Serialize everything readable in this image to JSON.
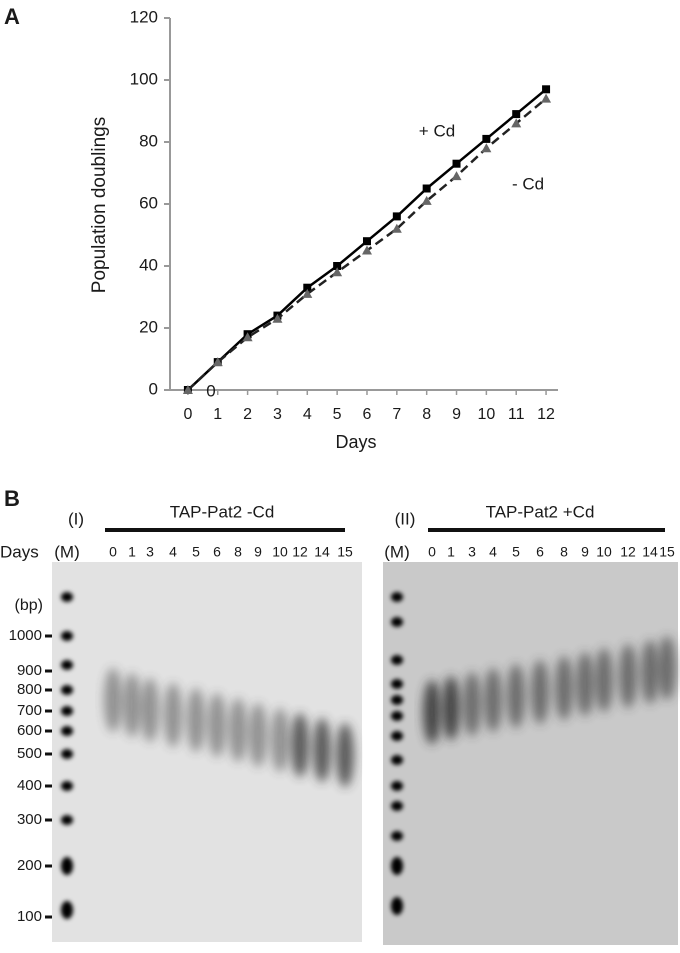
{
  "chart_data": {
    "type": "line",
    "panel_label": "A",
    "xlabel": "Days",
    "ylabel": "Population doublings",
    "x": [
      0,
      1,
      2,
      3,
      4,
      5,
      6,
      7,
      8,
      9,
      10,
      11,
      12
    ],
    "xlim": [
      -0.6,
      12.4
    ],
    "xticks": [
      0,
      1,
      2,
      3,
      4,
      5,
      6,
      7,
      8,
      9,
      10,
      11,
      12
    ],
    "ylim": [
      0,
      120
    ],
    "yticks": [
      0,
      20,
      40,
      60,
      80,
      100,
      120
    ],
    "annotations": [
      "0"
    ],
    "series": [
      {
        "name": "+ Cd",
        "color": "#000000",
        "dashed": false,
        "values": [
          0,
          9,
          18,
          24,
          33,
          40,
          48,
          56,
          65,
          73,
          81,
          89,
          97
        ]
      },
      {
        "name": "- Cd",
        "color": "#222222",
        "dashed": true,
        "values": [
          0,
          9,
          17,
          23,
          31,
          38,
          45,
          52,
          61,
          69,
          78,
          86,
          94
        ]
      }
    ]
  },
  "gel": {
    "label": "B",
    "days_label": "Days",
    "size_unit": "(bp)",
    "size_labels": [
      "1000",
      "900",
      "800",
      "700",
      "600",
      "500",
      "400",
      "300",
      "200",
      "100"
    ],
    "panels": [
      {
        "numeral": "(I)",
        "title": "TAP-Pat2 -Cd",
        "marker": "(M)",
        "lanes": [
          "0",
          "1",
          "3",
          "4",
          "5",
          "6",
          "8",
          "9",
          "10",
          "12",
          "14",
          "15"
        ]
      },
      {
        "numeral": "(II)",
        "title": "TAP-Pat2 +Cd",
        "marker": "(M)",
        "lanes": [
          "0",
          "1",
          "3",
          "4",
          "5",
          "6",
          "8",
          "9",
          "10",
          "12",
          "14",
          "15"
        ]
      }
    ]
  }
}
